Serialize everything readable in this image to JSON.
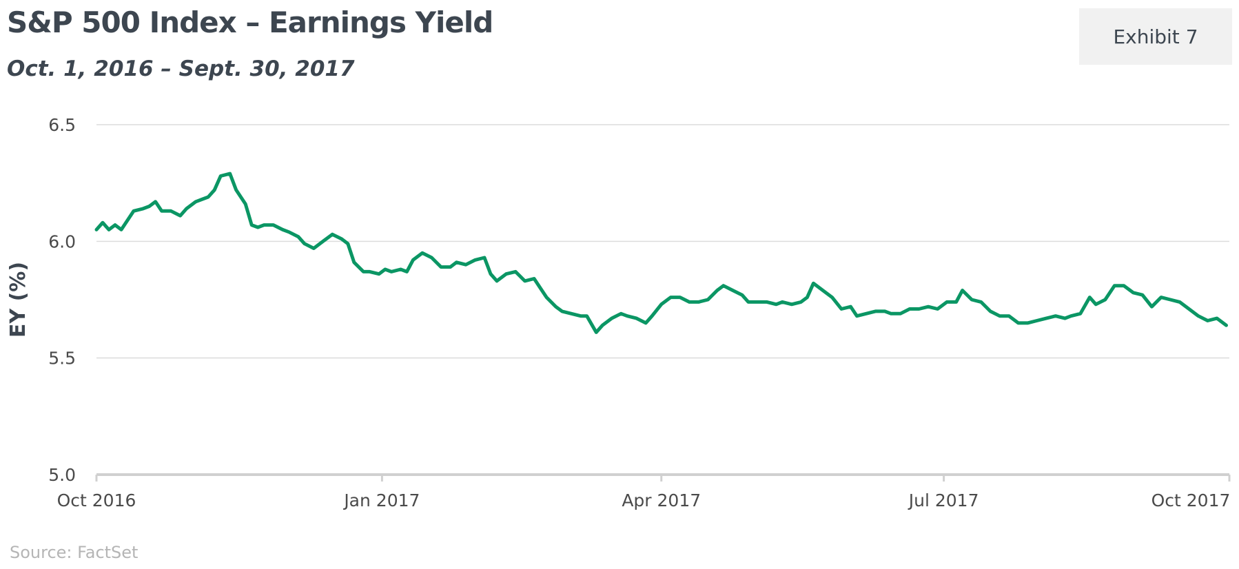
{
  "header": {
    "title": "S&P 500 Index – Earnings Yield",
    "subtitle": "Oct. 1, 2016 – Sept. 30, 2017",
    "exhibit_label": "Exhibit 7"
  },
  "footer": {
    "source": "Source: FactSet"
  },
  "colors": {
    "line": "#0b9664",
    "grid": "#dcdcdc",
    "axis": "#d0d0d0"
  },
  "chart_data": {
    "type": "line",
    "title": "S&P 500 Index – Earnings Yield",
    "subtitle": "Oct. 1, 2016 – Sept. 30, 2017",
    "xlabel": "",
    "ylabel": "EY (%)",
    "xlim": [
      "2016-10-01",
      "2017-10-01"
    ],
    "ylim": [
      5.0,
      6.5
    ],
    "yticks": [
      5.0,
      5.5,
      6.0,
      6.5
    ],
    "ytick_labels": [
      "5.0",
      "5.5",
      "6.0",
      "6.5"
    ],
    "xticks": [
      "2016-10-01",
      "2017-01-01",
      "2017-04-01",
      "2017-07-01",
      "2017-10-01"
    ],
    "xtick_labels": [
      "Oct 2016",
      "Jan 2017",
      "Apr 2017",
      "Jul 2017",
      "Oct 2017"
    ],
    "grid": true,
    "legend": "none",
    "series": [
      {
        "color": "#0b9664",
        "x": [
          "2016-10-01",
          "2016-10-03",
          "2016-10-05",
          "2016-10-07",
          "2016-10-09",
          "2016-10-13",
          "2016-10-16",
          "2016-10-18",
          "2016-10-20",
          "2016-10-22",
          "2016-10-25",
          "2016-10-28",
          "2016-10-30",
          "2016-11-02",
          "2016-11-04",
          "2016-11-06",
          "2016-11-08",
          "2016-11-10",
          "2016-11-13",
          "2016-11-15",
          "2016-11-18",
          "2016-11-20",
          "2016-11-22",
          "2016-11-24",
          "2016-11-27",
          "2016-11-30",
          "2016-12-02",
          "2016-12-05",
          "2016-12-07",
          "2016-12-10",
          "2016-12-13",
          "2016-12-16",
          "2016-12-19",
          "2016-12-21",
          "2016-12-23",
          "2016-12-26",
          "2016-12-28",
          "2016-12-31",
          "2017-01-02",
          "2017-01-04",
          "2017-01-07",
          "2017-01-09",
          "2017-01-11",
          "2017-01-14",
          "2017-01-17",
          "2017-01-20",
          "2017-01-23",
          "2017-01-25",
          "2017-01-28",
          "2017-01-31",
          "2017-02-03",
          "2017-02-05",
          "2017-02-07",
          "2017-02-10",
          "2017-02-13",
          "2017-02-16",
          "2017-02-19",
          "2017-02-21",
          "2017-02-23",
          "2017-02-26",
          "2017-02-28",
          "2017-03-03",
          "2017-03-06",
          "2017-03-08",
          "2017-03-11",
          "2017-03-13",
          "2017-03-16",
          "2017-03-19",
          "2017-03-21",
          "2017-03-24",
          "2017-03-27",
          "2017-03-29",
          "2017-04-01",
          "2017-04-04",
          "2017-04-07",
          "2017-04-10",
          "2017-04-13",
          "2017-04-16",
          "2017-04-19",
          "2017-04-21",
          "2017-04-24",
          "2017-04-27",
          "2017-04-29",
          "2017-05-02",
          "2017-05-05",
          "2017-05-08",
          "2017-05-10",
          "2017-05-13",
          "2017-05-16",
          "2017-05-18",
          "2017-05-20",
          "2017-05-23",
          "2017-05-26",
          "2017-05-29",
          "2017-06-01",
          "2017-06-03",
          "2017-06-06",
          "2017-06-09",
          "2017-06-12",
          "2017-06-14",
          "2017-06-17",
          "2017-06-20",
          "2017-06-23",
          "2017-06-26",
          "2017-06-29",
          "2017-07-02",
          "2017-07-05",
          "2017-07-07",
          "2017-07-10",
          "2017-07-13",
          "2017-07-16",
          "2017-07-19",
          "2017-07-22",
          "2017-07-25",
          "2017-07-28",
          "2017-07-31",
          "2017-08-03",
          "2017-08-06",
          "2017-08-09",
          "2017-08-11",
          "2017-08-14",
          "2017-08-17",
          "2017-08-19",
          "2017-08-22",
          "2017-08-25",
          "2017-08-28",
          "2017-08-31",
          "2017-09-03",
          "2017-09-06",
          "2017-09-09",
          "2017-09-12",
          "2017-09-15",
          "2017-09-18",
          "2017-09-21",
          "2017-09-24",
          "2017-09-27",
          "2017-09-30"
        ],
        "values": [
          6.05,
          6.08,
          6.05,
          6.07,
          6.05,
          6.13,
          6.14,
          6.15,
          6.17,
          6.13,
          6.13,
          6.11,
          6.14,
          6.17,
          6.18,
          6.19,
          6.22,
          6.28,
          6.29,
          6.22,
          6.16,
          6.07,
          6.06,
          6.07,
          6.07,
          6.05,
          6.04,
          6.02,
          5.99,
          5.97,
          6.0,
          6.03,
          6.01,
          5.99,
          5.91,
          5.87,
          5.87,
          5.86,
          5.88,
          5.87,
          5.88,
          5.87,
          5.92,
          5.95,
          5.93,
          5.89,
          5.89,
          5.91,
          5.9,
          5.92,
          5.93,
          5.86,
          5.83,
          5.86,
          5.87,
          5.83,
          5.84,
          5.8,
          5.76,
          5.72,
          5.7,
          5.69,
          5.68,
          5.68,
          5.61,
          5.64,
          5.67,
          5.69,
          5.68,
          5.67,
          5.65,
          5.68,
          5.73,
          5.76,
          5.76,
          5.74,
          5.74,
          5.75,
          5.79,
          5.81,
          5.79,
          5.77,
          5.74,
          5.74,
          5.74,
          5.73,
          5.74,
          5.73,
          5.74,
          5.76,
          5.82,
          5.79,
          5.76,
          5.71,
          5.72,
          5.68,
          5.69,
          5.7,
          5.7,
          5.69,
          5.69,
          5.71,
          5.71,
          5.72,
          5.71,
          5.74,
          5.74,
          5.79,
          5.75,
          5.74,
          5.7,
          5.68,
          5.68,
          5.65,
          5.65,
          5.66,
          5.67,
          5.68,
          5.67,
          5.68,
          5.69,
          5.76,
          5.73,
          5.75,
          5.81,
          5.81,
          5.78,
          5.77,
          5.72,
          5.76,
          5.75,
          5.74,
          5.71,
          5.68,
          5.66,
          5.67,
          5.64
        ]
      }
    ]
  }
}
